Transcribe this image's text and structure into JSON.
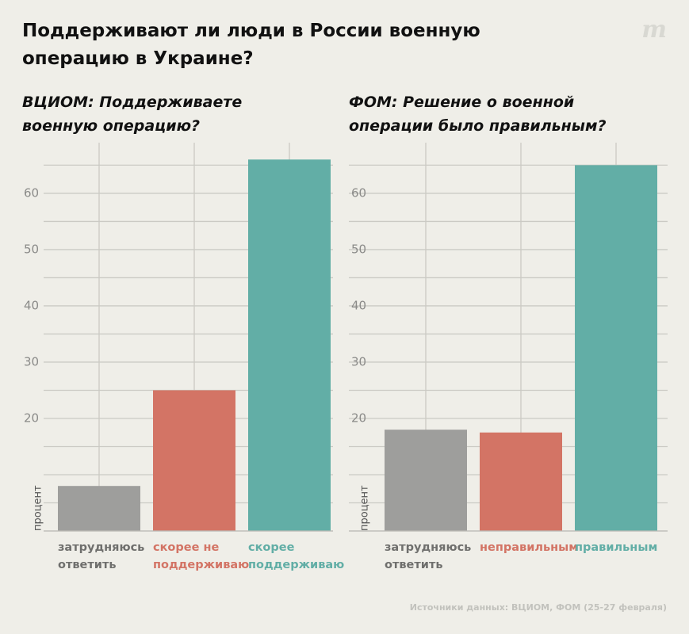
{
  "title": "Поддерживают ли люди в России военную операцию в Украине?",
  "logo": "m",
  "source": "Источники данных: ВЦИОМ, ФОМ (25-27 февраля)",
  "chart_data": [
    {
      "type": "bar",
      "title": "ВЦИОМ: Поддерживаете\nвоенную операцию?",
      "categories": [
        "затрудняюсь\nответить",
        "скорее не\nподдерживаю",
        "скорее\nподдерживаю"
      ],
      "values": [
        8,
        25,
        66
      ],
      "colors": [
        "#9e9e9c",
        "#d37465",
        "#62aea6"
      ],
      "label_colors": [
        "#6f6f6d",
        "#d37465",
        "#62aea6"
      ],
      "ylabel": "процент",
      "ylim": [
        0,
        69
      ],
      "yticks": [
        20,
        30,
        40,
        50,
        60
      ],
      "ygrid": [
        0,
        5,
        10,
        15,
        20,
        25,
        30,
        35,
        40,
        45,
        50,
        55,
        60,
        65
      ],
      "grid": true
    },
    {
      "type": "bar",
      "title": "ФОМ: Решение о военной\nоперации было правильным?",
      "categories": [
        "затрудняюсь\nответить",
        "неправильным",
        "правильным"
      ],
      "values": [
        18,
        17.5,
        65
      ],
      "colors": [
        "#9e9e9c",
        "#d37465",
        "#62aea6"
      ],
      "label_colors": [
        "#6f6f6d",
        "#d37465",
        "#62aea6"
      ],
      "ylabel": "процент",
      "ylim": [
        0,
        69
      ],
      "yticks": [
        20,
        30,
        40,
        50,
        60
      ],
      "ygrid": [
        0,
        5,
        10,
        15,
        20,
        25,
        30,
        35,
        40,
        45,
        50,
        55,
        60,
        65
      ],
      "grid": true
    }
  ]
}
